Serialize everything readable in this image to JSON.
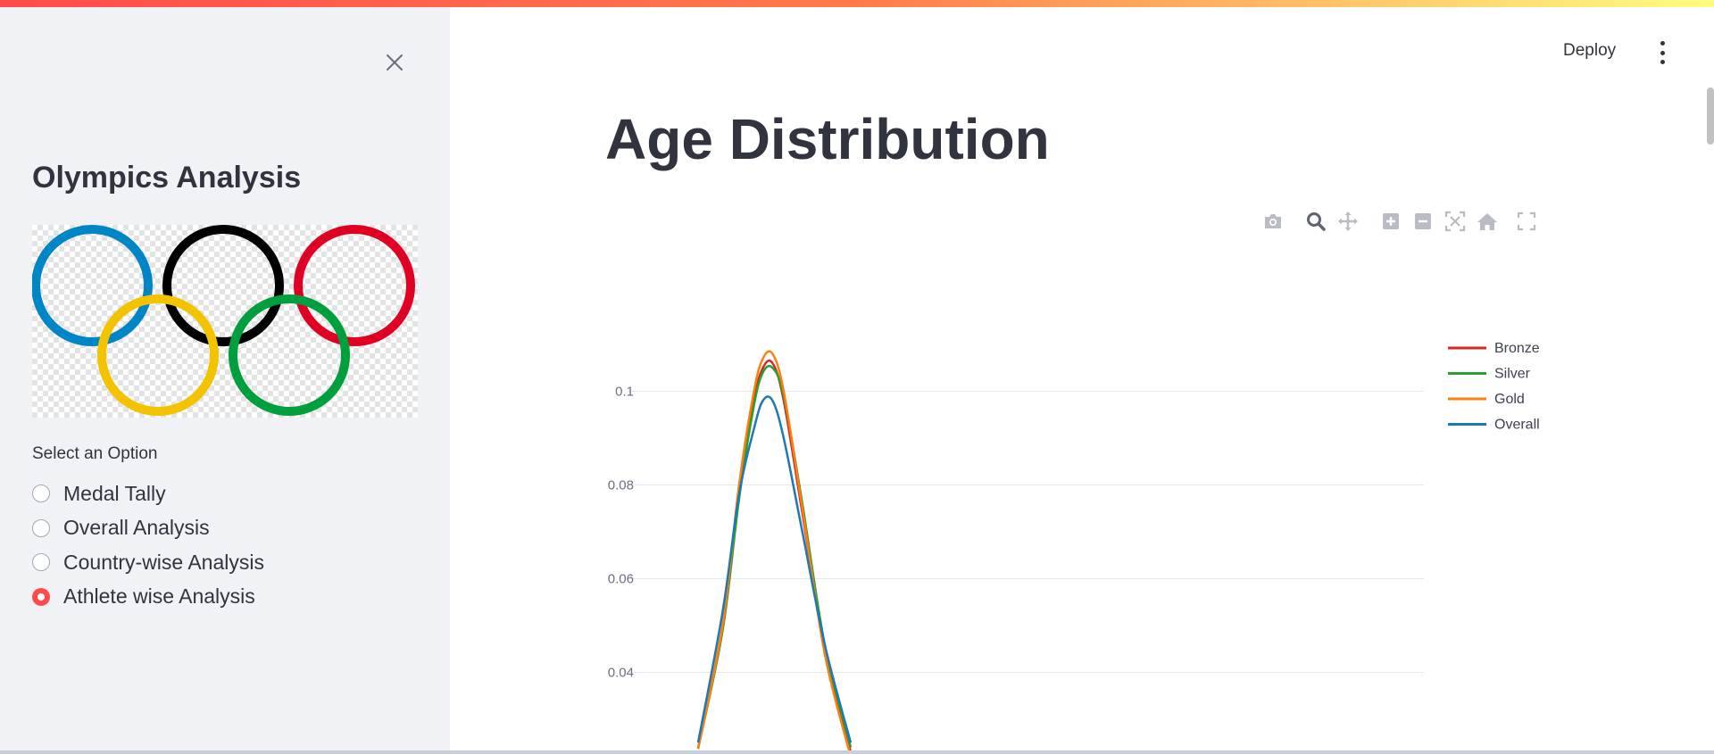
{
  "sidebar": {
    "close_icon": "close-icon",
    "title": "Olympics Analysis",
    "rings_colors": [
      "#0085c7",
      "#000000",
      "#df0024",
      "#f4c300",
      "#009f3d"
    ],
    "option_label": "Select an Option",
    "options": [
      {
        "label": "Medal Tally",
        "selected": false
      },
      {
        "label": "Overall Analysis",
        "selected": false
      },
      {
        "label": "Country-wise Analysis",
        "selected": false
      },
      {
        "label": "Athlete wise Analysis",
        "selected": true
      }
    ]
  },
  "header": {
    "deploy_label": "Deploy",
    "menu_icon": "kebab-menu-icon"
  },
  "main": {
    "title": "Age Distribution"
  },
  "modebar": {
    "icons": [
      "camera-icon",
      "zoom-icon",
      "pan-icon",
      "zoom-in-icon",
      "zoom-out-icon",
      "autoscale-icon",
      "home-icon",
      "fullscreen-icon"
    ],
    "active": "zoom-icon"
  },
  "chart_data": {
    "type": "line",
    "title": "",
    "xlabel": "",
    "ylabel": "",
    "y_ticks": [
      0.04,
      0.06,
      0.08,
      0.1
    ],
    "y_tick_labels": [
      "0.04",
      "0.06",
      "0.08",
      "0.1"
    ],
    "ylim_visible": [
      0.024,
      0.118
    ],
    "grid": true,
    "legend_position": "top-right",
    "series": [
      {
        "name": "Bronze",
        "color": "#d62728",
        "x": [
          0,
          0.33,
          0.55,
          0.75,
          0.87,
          1.0,
          1.15,
          1.4,
          1.7,
          2.05
        ],
        "y": [
          0.0237,
          0.05,
          0.078,
          0.098,
          0.105,
          0.106,
          0.098,
          0.074,
          0.045,
          0.023
        ]
      },
      {
        "name": "Silver",
        "color": "#2ca02c",
        "x": [
          0,
          0.33,
          0.55,
          0.75,
          0.87,
          1.0,
          1.15,
          1.4,
          1.7,
          2.05
        ],
        "y": [
          0.0237,
          0.049,
          0.077,
          0.097,
          0.104,
          0.105,
          0.099,
          0.076,
          0.046,
          0.024
        ]
      },
      {
        "name": "Gold",
        "color": "#ff7f0e",
        "x": [
          0,
          0.33,
          0.55,
          0.75,
          0.87,
          1.0,
          1.15,
          1.4,
          1.7,
          2.05
        ],
        "y": [
          0.0237,
          0.05,
          0.08,
          0.1,
          0.107,
          0.108,
          0.1,
          0.075,
          0.044,
          0.022
        ]
      },
      {
        "name": "Overall",
        "color": "#1f77b4",
        "x": [
          0,
          0.33,
          0.55,
          0.75,
          0.87,
          1.0,
          1.15,
          1.4,
          1.7,
          2.05
        ],
        "y": [
          0.025,
          0.053,
          0.078,
          0.092,
          0.098,
          0.098,
          0.09,
          0.07,
          0.046,
          0.025
        ]
      }
    ]
  }
}
